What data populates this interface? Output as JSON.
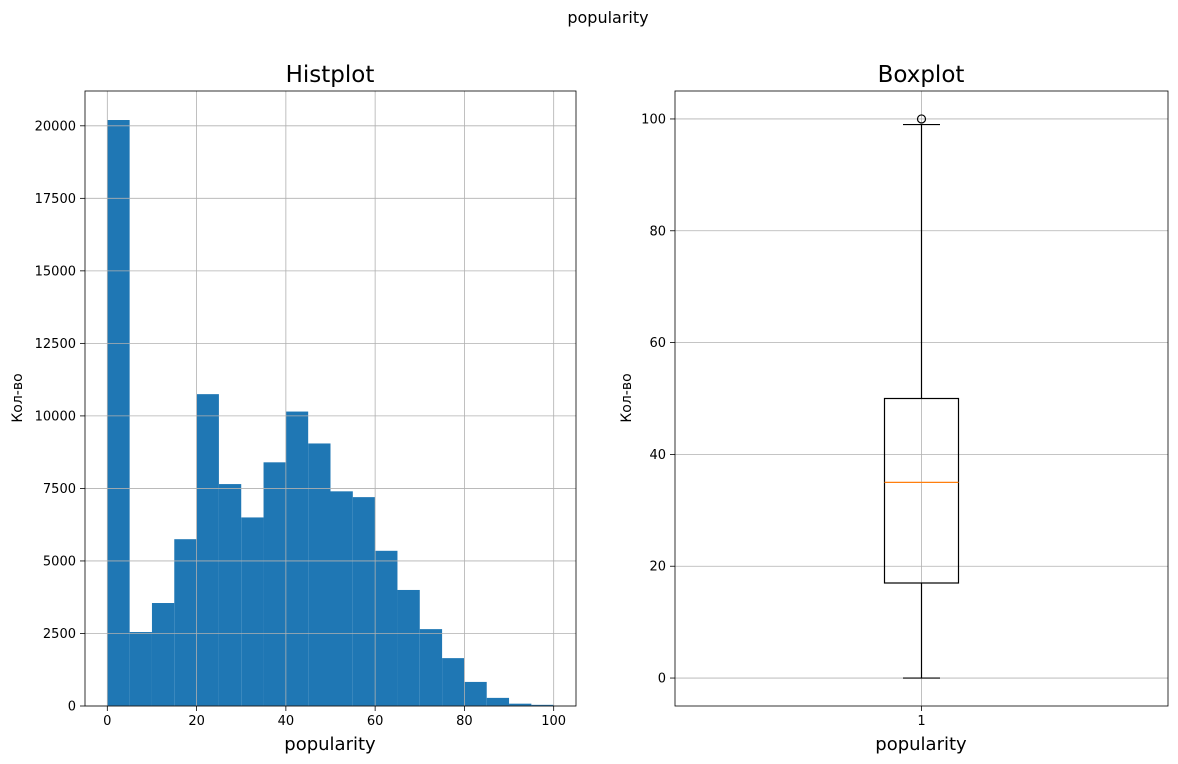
{
  "suptitle": "popularity",
  "colors": {
    "bar": "#1f77b4",
    "median": "#ff7f0e",
    "grid": "#b0b0b0",
    "axis": "#000000"
  },
  "chart_data": [
    {
      "type": "bar",
      "title": "Histplot",
      "xlabel": "popularity",
      "ylabel": "Кол-во",
      "xlim": [
        -5,
        105
      ],
      "ylim": [
        0,
        21200
      ],
      "grid": true,
      "xticks": [
        0,
        20,
        40,
        60,
        80,
        100
      ],
      "yticks": [
        0,
        2500,
        5000,
        7500,
        10000,
        12500,
        15000,
        17500,
        20000
      ],
      "bin_edges": [
        0,
        5,
        10,
        15,
        20,
        25,
        30,
        35,
        40,
        45,
        50,
        55,
        60,
        65,
        70,
        75,
        80,
        85,
        90,
        95,
        100
      ],
      "values": [
        20200,
        2550,
        3550,
        5750,
        10750,
        7650,
        6500,
        8400,
        10150,
        9050,
        7400,
        7200,
        5350,
        4000,
        2650,
        1650,
        830,
        280,
        80,
        40
      ]
    },
    {
      "type": "box",
      "title": "Boxplot",
      "xlabel": "popularity",
      "ylabel": "Кол-во",
      "ylim": [
        -5,
        105
      ],
      "grid": true,
      "xticks": [
        "1"
      ],
      "yticks": [
        0,
        20,
        40,
        60,
        80,
        100
      ],
      "box": {
        "whisker_low": 0,
        "q1": 17,
        "median": 35,
        "q3": 50,
        "whisker_high": 99,
        "outliers": [
          100
        ]
      }
    }
  ]
}
